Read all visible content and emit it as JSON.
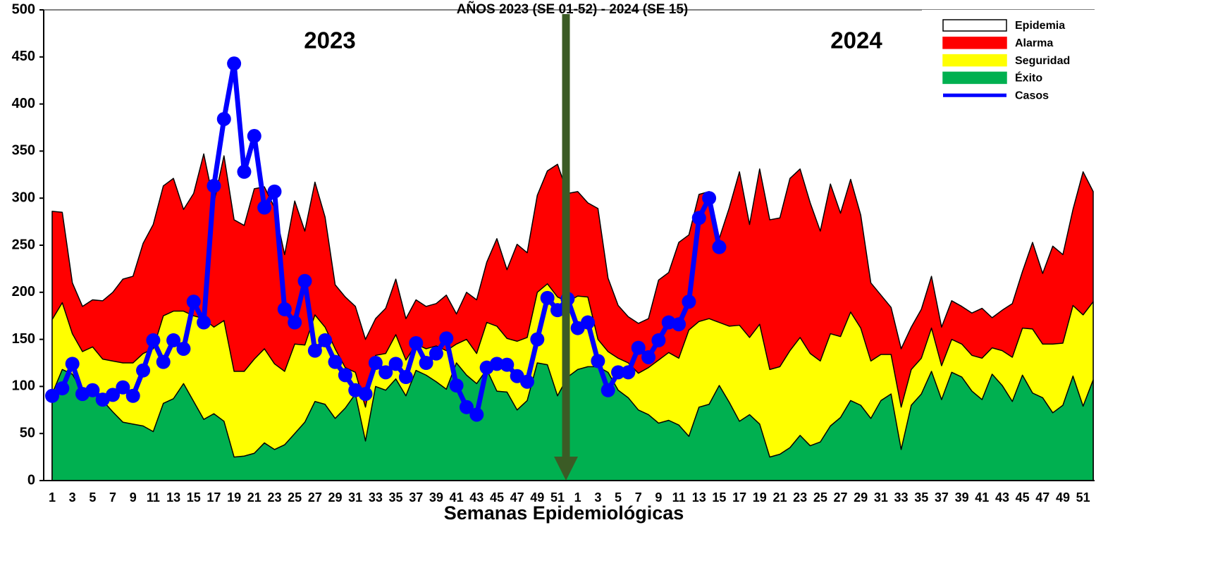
{
  "chart_data": {
    "type": "area",
    "title": "AÑOS 2023  (SE 01-52) - 2024 (SE 15)",
    "annotations": [
      "2023",
      "2024"
    ],
    "x_label": "Semanas Epidemiológicas",
    "categories": [
      "1",
      null,
      "3",
      null,
      "5",
      null,
      "7",
      null,
      "9",
      null,
      "11",
      null,
      "13",
      null,
      "15",
      null,
      "17",
      null,
      "19",
      null,
      "21",
      null,
      "23",
      null,
      "25",
      null,
      "27",
      null,
      "29",
      null,
      "31",
      null,
      "33",
      null,
      "35",
      null,
      "37",
      null,
      "39",
      null,
      "41",
      null,
      "43",
      null,
      "45",
      null,
      "47",
      null,
      "49",
      null,
      "51",
      null,
      "1",
      null,
      "3",
      null,
      "5",
      null,
      "7",
      null,
      "9",
      null,
      "11",
      null,
      "13",
      null,
      "15",
      null,
      "17",
      null,
      "19",
      null,
      "21",
      null,
      "23",
      null,
      "25",
      null,
      "27",
      null,
      "29",
      null,
      "31",
      null,
      "33",
      null,
      "35",
      null,
      "37",
      null,
      "39",
      null,
      "41",
      null,
      "43",
      null,
      "45",
      null,
      "47",
      null,
      "49",
      null,
      "51",
      null
    ],
    "ylim": [
      0,
      500
    ],
    "yticks": [
      0,
      50,
      100,
      150,
      200,
      250,
      300,
      350,
      400,
      450,
      500
    ],
    "legend": "upper right",
    "series": [
      {
        "name": "Epidemia",
        "type": "area",
        "color": "#ffffff"
      },
      {
        "name": "Alarma",
        "type": "area",
        "color": "#ff0000",
        "values": [
          286,
          285,
          210,
          185,
          192,
          191,
          200,
          214,
          217,
          252,
          272,
          313,
          321,
          288,
          305,
          347,
          295,
          345,
          277,
          271,
          310,
          312,
          290,
          240,
          297,
          265,
          317,
          280,
          208,
          195,
          185,
          150,
          172,
          183,
          214,
          172,
          192,
          185,
          188,
          197,
          177,
          200,
          192,
          232,
          257,
          224,
          251,
          242,
          303,
          329,
          336,
          305,
          307,
          295,
          289,
          215,
          186,
          174,
          167,
          172,
          213,
          221,
          253,
          261,
          304,
          307,
          257,
          290,
          328,
          272,
          331,
          277,
          279,
          321,
          331,
          295,
          265,
          315,
          284,
          320,
          282,
          210,
          197,
          184,
          140,
          163,
          182,
          217,
          163,
          191,
          185,
          178,
          183,
          173,
          181,
          188,
          222,
          253,
          220,
          249,
          240,
          288,
          328,
          307
        ]
      },
      {
        "name": "Seguridad",
        "type": "area",
        "color": "#ffff00",
        "values": [
          171,
          189,
          156,
          137,
          142,
          129,
          127,
          125,
          125,
          135,
          140,
          175,
          180,
          180,
          175,
          172,
          163,
          170,
          116,
          116,
          129,
          140,
          124,
          116,
          145,
          144,
          176,
          163,
          140,
          120,
          115,
          78,
          133,
          135,
          155,
          128,
          145,
          140,
          143,
          138,
          145,
          150,
          135,
          168,
          164,
          151,
          148,
          152,
          200,
          209,
          195,
          190,
          196,
          195,
          150,
          137,
          130,
          125,
          114,
          120,
          128,
          136,
          130,
          160,
          169,
          172,
          168,
          164,
          165,
          152,
          166,
          118,
          121,
          138,
          152,
          135,
          127,
          156,
          153,
          179,
          162,
          127,
          134,
          134,
          78,
          118,
          130,
          162,
          122,
          150,
          145,
          133,
          130,
          141,
          138,
          131,
          162,
          161,
          145,
          145,
          146,
          186,
          176,
          190
        ]
      },
      {
        "name": "Éxito",
        "type": "area",
        "color": "#00b050",
        "values": [
          92,
          118,
          113,
          95,
          95,
          85,
          73,
          62,
          60,
          58,
          52,
          82,
          87,
          103,
          84,
          65,
          71,
          63,
          25,
          26,
          29,
          40,
          33,
          38,
          50,
          62,
          84,
          81,
          66,
          77,
          92,
          42,
          100,
          96,
          108,
          90,
          117,
          112,
          105,
          97,
          125,
          112,
          103,
          118,
          95,
          94,
          75,
          85,
          125,
          123,
          90,
          110,
          118,
          121,
          121,
          115,
          96,
          88,
          75,
          70,
          61,
          64,
          59,
          47,
          78,
          81,
          101,
          83,
          63,
          70,
          60,
          25,
          28,
          35,
          48,
          37,
          41,
          58,
          67,
          85,
          80,
          66,
          85,
          92,
          33,
          80,
          92,
          116,
          86,
          115,
          110,
          95,
          86,
          113,
          101,
          84,
          112,
          93,
          88,
          72,
          80,
          111,
          79,
          107
        ]
      },
      {
        "name": "Casos",
        "type": "line",
        "color": "#0000ff",
        "values": [
          90,
          98,
          124,
          92,
          96,
          86,
          91,
          99,
          90,
          117,
          149,
          126,
          149,
          140,
          190,
          168,
          313,
          384,
          443,
          328,
          366,
          290,
          307,
          182,
          168,
          212,
          138,
          149,
          126,
          112,
          96,
          92,
          125,
          115,
          124,
          110,
          146,
          125,
          135,
          151,
          101,
          78,
          70,
          120,
          124,
          123,
          111,
          105,
          150,
          194,
          181,
          193,
          162,
          168,
          127,
          96,
          115,
          115,
          141,
          131,
          149,
          168,
          166,
          190,
          279,
          300,
          248,
          null,
          null,
          null,
          null,
          null,
          null,
          null,
          null,
          null,
          null,
          null,
          null,
          null,
          null,
          null,
          null,
          null,
          null,
          null,
          null,
          null,
          null,
          null,
          null,
          null,
          null,
          null,
          null,
          null,
          null,
          null,
          null,
          null,
          null,
          null,
          null,
          null
        ]
      }
    ]
  }
}
